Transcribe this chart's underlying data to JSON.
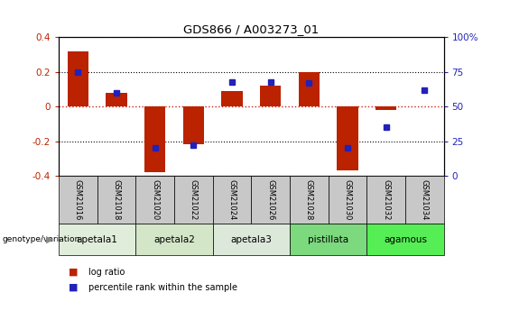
{
  "title": "GDS866 / A003273_01",
  "samples": [
    "GSM21016",
    "GSM21018",
    "GSM21020",
    "GSM21022",
    "GSM21024",
    "GSM21026",
    "GSM21028",
    "GSM21030",
    "GSM21032",
    "GSM21034"
  ],
  "log_ratio": [
    0.32,
    0.08,
    -0.38,
    -0.22,
    0.09,
    0.12,
    0.2,
    -0.37,
    -0.02,
    0.0
  ],
  "percentile": [
    75,
    60,
    20,
    22,
    68,
    68,
    67,
    20,
    35,
    62
  ],
  "ylim": [
    -0.4,
    0.4
  ],
  "yticks_left": [
    -0.4,
    -0.2,
    0.0,
    0.2,
    0.4
  ],
  "yticks_right": [
    0,
    25,
    50,
    75,
    100
  ],
  "bar_color": "#BB2200",
  "dot_color": "#2222BB",
  "zero_line_color": "#CC2222",
  "groups": [
    {
      "label": "apetala1",
      "start": 0,
      "end": 1
    },
    {
      "label": "apetala2",
      "start": 2,
      "end": 3
    },
    {
      "label": "apetala3",
      "start": 4,
      "end": 5
    },
    {
      "label": "pistillata",
      "start": 6,
      "end": 7
    },
    {
      "label": "agamous",
      "start": 8,
      "end": 9
    }
  ],
  "group_colors": [
    "#E0EDDA",
    "#D4E6C8",
    "#DCE8DA",
    "#7DD97D",
    "#55EE55"
  ],
  "sample_box_color": "#C8C8C8",
  "bar_width": 0.55,
  "legend_red_label": "log ratio",
  "legend_blue_label": "percentile rank within the sample"
}
